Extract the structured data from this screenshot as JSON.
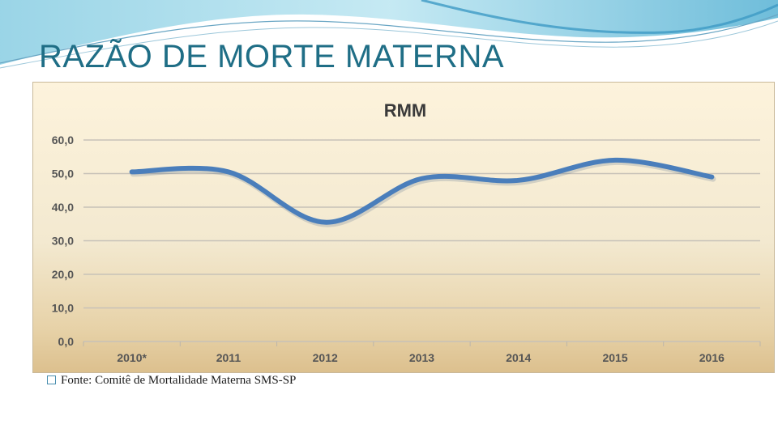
{
  "slide": {
    "title": "RAZÃO DE MORTE MATERNA",
    "source_note": "Fonte: Comitê de Mortalidade Materna SMS-SP",
    "accent_color": "#1f6e86"
  },
  "chart_data": {
    "type": "line",
    "title": "RMM",
    "categories": [
      "2010*",
      "2011",
      "2012",
      "2013",
      "2014",
      "2015",
      "2016"
    ],
    "series": [
      {
        "values": [
          50.5,
          50.5,
          35.5,
          48.5,
          48.0,
          54.0,
          49.0
        ],
        "color": "#4a7ebb"
      }
    ],
    "ylim": [
      0,
      60
    ],
    "yticks": [
      0,
      10,
      20,
      30,
      40,
      50,
      60
    ],
    "ytick_labels": [
      "0,0",
      "10,0",
      "20,0",
      "30,0",
      "40,0",
      "50,0",
      "60,0"
    ],
    "xlabel": "",
    "ylabel": "",
    "grid": true,
    "smooth": true
  }
}
